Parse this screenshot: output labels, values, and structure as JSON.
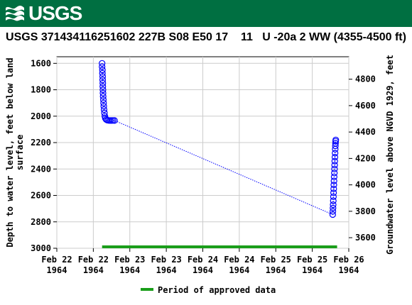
{
  "header": {
    "logo_text": "USGS",
    "color": "#006f41"
  },
  "chart_data": {
    "type": "scatter",
    "title": "USGS 371434116251602 227B S08 E50 17    11   U -20a 2 WW (4355-4500 ft)",
    "ylabel_left_line1": "Depth to water level, feet below land",
    "ylabel_left_line2": "surface",
    "ylabel_right": "Groundwater level above NGVD 1929, feet",
    "y_left_ticks": [
      "1600",
      "1800",
      "2000",
      "2200",
      "2400",
      "2600",
      "2800",
      "3000"
    ],
    "y_right_ticks": [
      "4800",
      "4600",
      "4400",
      "4200",
      "4000",
      "3800",
      "3600"
    ],
    "x_ticks": [
      {
        "line1": "Feb 22",
        "line2": "1964"
      },
      {
        "line1": "Feb 22",
        "line2": "1964"
      },
      {
        "line1": "Feb 23",
        "line2": "1964"
      },
      {
        "line1": "Feb 23",
        "line2": "1964"
      },
      {
        "line1": "Feb 24",
        "line2": "1964"
      },
      {
        "line1": "Feb 24",
        "line2": "1964"
      },
      {
        "line1": "Feb 25",
        "line2": "1964"
      },
      {
        "line1": "Feb 25",
        "line2": "1964"
      },
      {
        "line1": "Feb 26",
        "line2": "1964"
      }
    ],
    "x_range_days": [
      0,
      4
    ],
    "y_left_range": [
      1550,
      3000
    ],
    "y_right_range": [
      3520,
      4970
    ],
    "grid": true,
    "series": [
      {
        "color": "#0000ff",
        "marker": "circle",
        "points": [
          [
            0.62,
            1600
          ],
          [
            0.62,
            1625
          ],
          [
            0.625,
            1650
          ],
          [
            0.625,
            1675
          ],
          [
            0.628,
            1700
          ],
          [
            0.628,
            1725
          ],
          [
            0.63,
            1750
          ],
          [
            0.63,
            1775
          ],
          [
            0.632,
            1800
          ],
          [
            0.633,
            1825
          ],
          [
            0.635,
            1850
          ],
          [
            0.637,
            1875
          ],
          [
            0.64,
            1900
          ],
          [
            0.643,
            1925
          ],
          [
            0.647,
            1950
          ],
          [
            0.652,
            1975
          ],
          [
            0.658,
            2000
          ],
          [
            0.665,
            2015
          ],
          [
            0.675,
            2025
          ],
          [
            0.69,
            2030
          ],
          [
            0.71,
            2032
          ],
          [
            0.73,
            2033
          ],
          [
            0.75,
            2033
          ],
          [
            0.77,
            2032
          ],
          [
            0.79,
            2033
          ],
          [
            3.78,
            2745
          ],
          [
            3.782,
            2720
          ],
          [
            3.784,
            2695
          ],
          [
            3.786,
            2670
          ],
          [
            3.788,
            2640
          ],
          [
            3.79,
            2610
          ],
          [
            3.792,
            2580
          ],
          [
            3.794,
            2550
          ],
          [
            3.796,
            2520
          ],
          [
            3.798,
            2490
          ],
          [
            3.8,
            2460
          ],
          [
            3.802,
            2430
          ],
          [
            3.804,
            2400
          ],
          [
            3.806,
            2370
          ],
          [
            3.808,
            2340
          ],
          [
            3.81,
            2310
          ],
          [
            3.812,
            2280
          ],
          [
            3.814,
            2250
          ],
          [
            3.816,
            2225
          ],
          [
            3.818,
            2205
          ],
          [
            3.82,
            2190
          ],
          [
            3.822,
            2180
          ]
        ]
      }
    ],
    "approved_period_days": [
      0.62,
      3.84
    ],
    "approved_color": "#1a9e1a"
  },
  "legend": {
    "label": "Period of approved data",
    "color": "#1a9e1a"
  }
}
